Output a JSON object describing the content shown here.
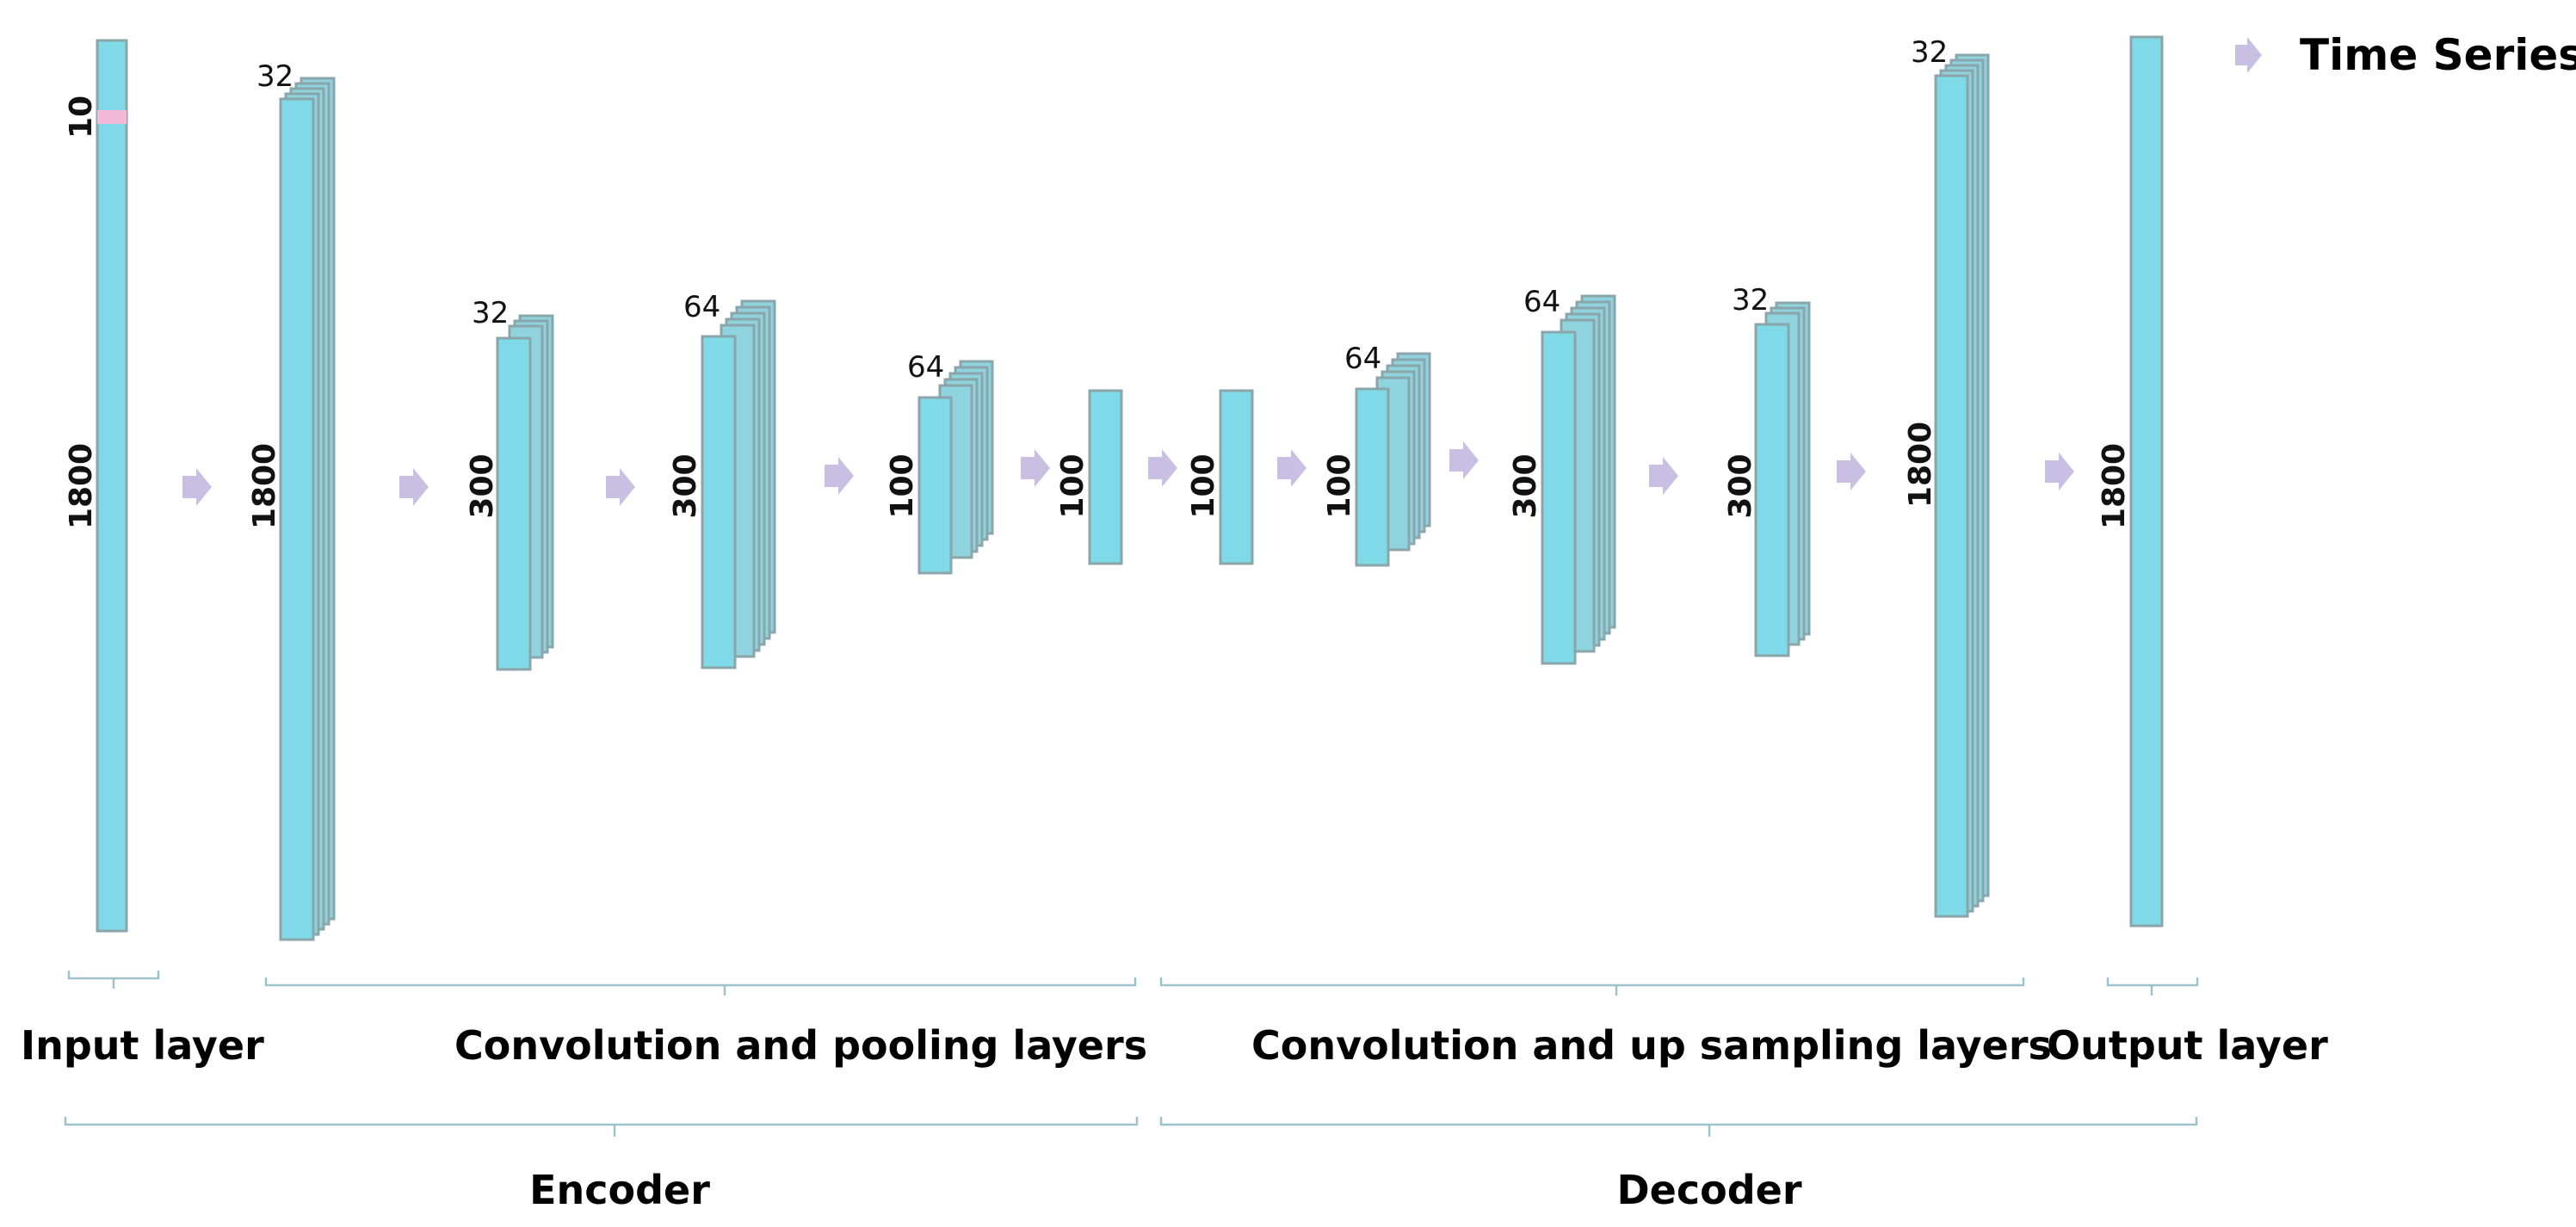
{
  "legend": {
    "label": "Time Series",
    "icon": "arrow-right-icon",
    "color": "#c9bfe3"
  },
  "input_layer": {
    "length": "1800",
    "width": "10"
  },
  "encoder_blocks": [
    {
      "length": "1800",
      "filters": "32"
    },
    {
      "length": "300",
      "filters": "32"
    },
    {
      "length": "300",
      "filters": "64"
    },
    {
      "length": "100",
      "filters": "64"
    },
    {
      "length": "100"
    }
  ],
  "decoder_blocks": [
    {
      "length": "100"
    },
    {
      "length": "100",
      "filters": "64"
    },
    {
      "length": "300",
      "filters": "64"
    },
    {
      "length": "300",
      "filters": "32"
    },
    {
      "length": "1800",
      "filters": "32"
    }
  ],
  "output_layer": {
    "length": "1800"
  },
  "sections": {
    "input": "Input layer",
    "conv_pool": "Convolution and pooling layers",
    "conv_up": "Convolution and up sampling layers",
    "output": "Output layer"
  },
  "groups": {
    "encoder": "Encoder",
    "decoder": "Decoder"
  },
  "colors": {
    "block_fill": "#7fd9e6",
    "block_stroke": "#8aa6ab",
    "highlight": "#f3b8d6",
    "arrow": "#c9bfe3"
  }
}
